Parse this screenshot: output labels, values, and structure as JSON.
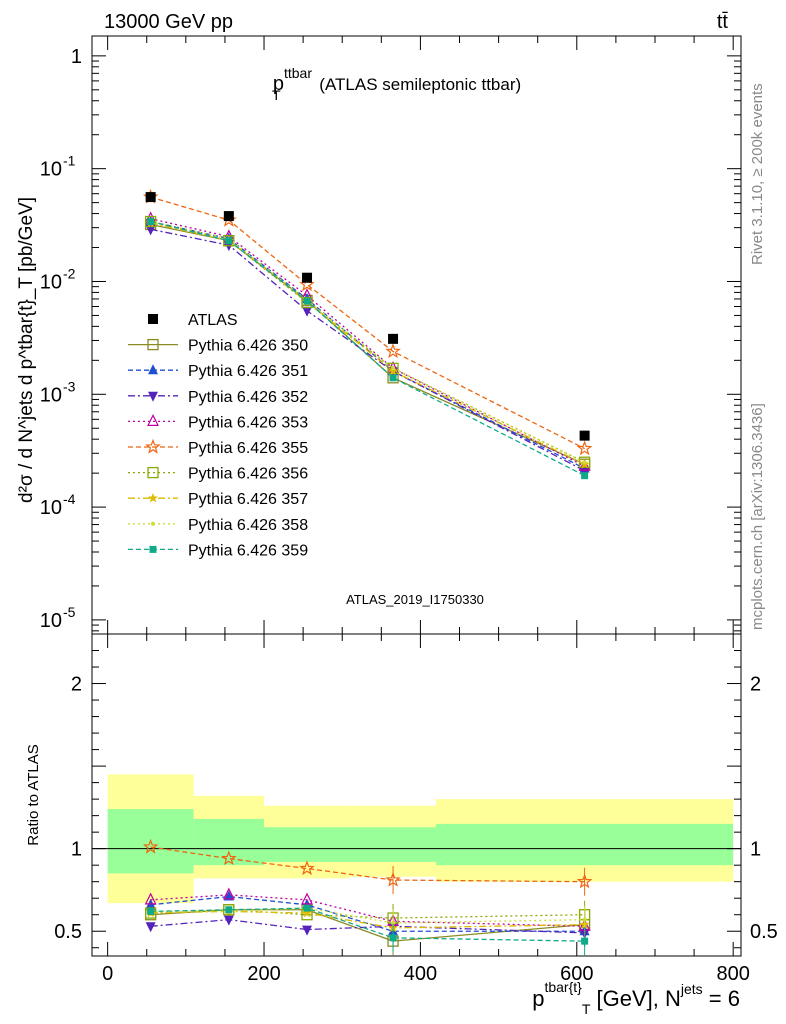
{
  "header": {
    "energy_label": "13000 GeV pp",
    "process_label": "tt̄"
  },
  "side_labels": {
    "rivet": "Rivet 3.1.10, ≥ 200k events",
    "mcplots": "mcplots.cern.ch [arXiv:1306.3436]"
  },
  "colors": {
    "data": "#000000",
    "band_inner": "#99ff99",
    "band_outer": "#ffff99"
  },
  "chart_data": [
    {
      "type": "line",
      "panel": "main",
      "title_main": "p",
      "title_sup": "ttbar",
      "title_sub": "T",
      "title_rest": "(ATLAS semileptonic ttbar)",
      "analysis_label": "ATLAS_2019_I1750330",
      "ylabel": "d²σ / d N^jets d p^tbar{t}_T [pb/GeV]",
      "yscale": "log",
      "ylim": [
        7.5e-06,
        1.5
      ],
      "xlim": [
        -20,
        810
      ],
      "y_ticks": [
        {
          "value": 1,
          "label": "1"
        },
        {
          "value": 0.1,
          "base": "10",
          "exp": "-1"
        },
        {
          "value": 0.01,
          "base": "10",
          "exp": "-2"
        },
        {
          "value": 0.001,
          "base": "10",
          "exp": "-3"
        },
        {
          "value": 0.0001,
          "base": "10",
          "exp": "-4"
        },
        {
          "value": 1e-05,
          "base": "10",
          "exp": "-5"
        }
      ],
      "legend_position": "middle-left",
      "x": [
        55,
        155,
        255,
        365,
        610
      ],
      "data_series": {
        "name": "ATLAS",
        "values": [
          0.056,
          0.038,
          0.0108,
          0.0031,
          0.00043
        ]
      },
      "series": [
        {
          "name": "Pythia 6.426 350",
          "color": "#8b8b22",
          "dash": "",
          "marker": "square-open",
          "values": [
            0.032,
            0.023,
            0.0068,
            0.0014,
            0.00024
          ]
        },
        {
          "name": "Pythia 6.426 351",
          "color": "#1f4fd0",
          "dash": "5,3",
          "marker": "triangle-up",
          "values": [
            0.034,
            0.024,
            0.007,
            0.0016,
            0.00022
          ]
        },
        {
          "name": "Pythia 6.426 352",
          "color": "#5522bb",
          "dash": "7,3,2,3",
          "marker": "triangle-down",
          "values": [
            0.029,
            0.021,
            0.0055,
            0.0016,
            0.00021
          ]
        },
        {
          "name": "Pythia 6.426 353",
          "color": "#c000a0",
          "dash": "2,3",
          "marker": "triangle-up-open",
          "values": [
            0.036,
            0.025,
            0.0075,
            0.0017,
            0.00023
          ]
        },
        {
          "name": "Pythia 6.426 355",
          "color": "#ee6611",
          "dash": "5,3",
          "marker": "star-open",
          "values": [
            0.056,
            0.035,
            0.0094,
            0.0024,
            0.00033
          ]
        },
        {
          "name": "Pythia 6.426 356",
          "color": "#88aa00",
          "dash": "2,3",
          "marker": "square-open",
          "values": [
            0.034,
            0.023,
            0.0065,
            0.0017,
            0.00025
          ]
        },
        {
          "name": "Pythia 6.426 357",
          "color": "#ddbb00",
          "dash": "7,3,2,3",
          "marker": "star-small",
          "values": [
            0.033,
            0.023,
            0.0066,
            0.0016,
            0.00024
          ]
        },
        {
          "name": "Pythia 6.426 358",
          "color": "#ccdd33",
          "dash": "2,3",
          "marker": "dot",
          "values": [
            0.034,
            0.024,
            0.0068,
            0.0017,
            0.00025
          ]
        },
        {
          "name": "Pythia 6.426 359",
          "color": "#11aa88",
          "dash": "5,3",
          "marker": "square",
          "values": [
            0.034,
            0.023,
            0.0067,
            0.0014,
            0.00019
          ]
        }
      ]
    },
    {
      "type": "line",
      "panel": "ratio",
      "ylabel": "Ratio to ATLAS",
      "xlabel_main": "p",
      "xlabel_sup": "tbar{t}",
      "xlabel_sub": "T",
      "xlabel_rest": "[GeV], N",
      "xlabel_sup2": "jets",
      "xlabel_end": "= 6",
      "ylim": [
        0.35,
        2.3
      ],
      "xlim": [
        -20,
        810
      ],
      "x_ticks": [
        0,
        200,
        400,
        600,
        800
      ],
      "x_tick_labels": [
        "0",
        "200",
        "400",
        "600",
        "800"
      ],
      "y_ticks": [
        0.5,
        1,
        2
      ],
      "y_tick_labels": [
        "0.5",
        "1",
        "2"
      ],
      "bins": [
        {
          "lo": 0,
          "hi": 110,
          "inner": [
            0.85,
            1.24
          ],
          "outer": [
            0.67,
            1.45
          ]
        },
        {
          "lo": 110,
          "hi": 200,
          "inner": [
            0.9,
            1.18
          ],
          "outer": [
            0.82,
            1.32
          ]
        },
        {
          "lo": 200,
          "hi": 310,
          "inner": [
            0.92,
            1.13
          ],
          "outer": [
            0.82,
            1.26
          ]
        },
        {
          "lo": 310,
          "hi": 420,
          "inner": [
            0.92,
            1.13
          ],
          "outer": [
            0.83,
            1.26
          ]
        },
        {
          "lo": 420,
          "hi": 800,
          "inner": [
            0.9,
            1.15
          ],
          "outer": [
            0.8,
            1.3
          ]
        }
      ],
      "x": [
        55,
        155,
        255,
        365,
        610
      ],
      "series": [
        {
          "name": "Pythia 6.426 350",
          "values": [
            0.6,
            0.63,
            0.63,
            0.44,
            0.54
          ]
        },
        {
          "name": "Pythia 6.426 351",
          "values": [
            0.66,
            0.71,
            0.66,
            0.5,
            0.5
          ]
        },
        {
          "name": "Pythia 6.426 352",
          "values": [
            0.53,
            0.57,
            0.51,
            0.53,
            0.49
          ]
        },
        {
          "name": "Pythia 6.426 353",
          "values": [
            0.69,
            0.72,
            0.69,
            0.56,
            0.53
          ]
        },
        {
          "name": "Pythia 6.426 355",
          "values": [
            1.01,
            0.94,
            0.88,
            0.81,
            0.8
          ]
        },
        {
          "name": "Pythia 6.426 356",
          "values": [
            0.61,
            0.63,
            0.6,
            0.58,
            0.6
          ]
        },
        {
          "name": "Pythia 6.426 357",
          "values": [
            0.61,
            0.62,
            0.61,
            0.52,
            0.54
          ]
        },
        {
          "name": "Pythia 6.426 358",
          "values": [
            0.62,
            0.62,
            0.64,
            0.55,
            0.57
          ]
        },
        {
          "name": "Pythia 6.426 359",
          "values": [
            0.62,
            0.63,
            0.64,
            0.46,
            0.44
          ]
        }
      ]
    }
  ]
}
